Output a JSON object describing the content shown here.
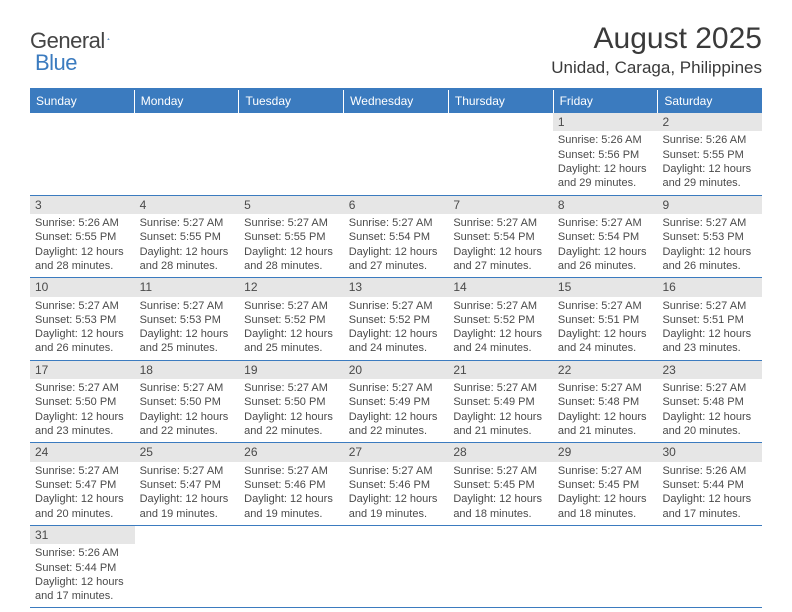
{
  "logo": {
    "word1": "General",
    "word2": "Blue"
  },
  "title": "August 2025",
  "location": "Unidad, Caraga, Philippines",
  "theme": {
    "accent": "#3b7bbf",
    "header_text": "#ffffff",
    "daynum_bg": "#e6e6e6",
    "text": "#4a4a4a"
  },
  "dayHeaders": [
    "Sunday",
    "Monday",
    "Tuesday",
    "Wednesday",
    "Thursday",
    "Friday",
    "Saturday"
  ],
  "weeks": [
    [
      null,
      null,
      null,
      null,
      null,
      {
        "n": "1",
        "sunrise": "5:26 AM",
        "sunset": "5:56 PM",
        "daylight": "12 hours and 29 minutes."
      },
      {
        "n": "2",
        "sunrise": "5:26 AM",
        "sunset": "5:55 PM",
        "daylight": "12 hours and 29 minutes."
      }
    ],
    [
      {
        "n": "3",
        "sunrise": "5:26 AM",
        "sunset": "5:55 PM",
        "daylight": "12 hours and 28 minutes."
      },
      {
        "n": "4",
        "sunrise": "5:27 AM",
        "sunset": "5:55 PM",
        "daylight": "12 hours and 28 minutes."
      },
      {
        "n": "5",
        "sunrise": "5:27 AM",
        "sunset": "5:55 PM",
        "daylight": "12 hours and 28 minutes."
      },
      {
        "n": "6",
        "sunrise": "5:27 AM",
        "sunset": "5:54 PM",
        "daylight": "12 hours and 27 minutes."
      },
      {
        "n": "7",
        "sunrise": "5:27 AM",
        "sunset": "5:54 PM",
        "daylight": "12 hours and 27 minutes."
      },
      {
        "n": "8",
        "sunrise": "5:27 AM",
        "sunset": "5:54 PM",
        "daylight": "12 hours and 26 minutes."
      },
      {
        "n": "9",
        "sunrise": "5:27 AM",
        "sunset": "5:53 PM",
        "daylight": "12 hours and 26 minutes."
      }
    ],
    [
      {
        "n": "10",
        "sunrise": "5:27 AM",
        "sunset": "5:53 PM",
        "daylight": "12 hours and 26 minutes."
      },
      {
        "n": "11",
        "sunrise": "5:27 AM",
        "sunset": "5:53 PM",
        "daylight": "12 hours and 25 minutes."
      },
      {
        "n": "12",
        "sunrise": "5:27 AM",
        "sunset": "5:52 PM",
        "daylight": "12 hours and 25 minutes."
      },
      {
        "n": "13",
        "sunrise": "5:27 AM",
        "sunset": "5:52 PM",
        "daylight": "12 hours and 24 minutes."
      },
      {
        "n": "14",
        "sunrise": "5:27 AM",
        "sunset": "5:52 PM",
        "daylight": "12 hours and 24 minutes."
      },
      {
        "n": "15",
        "sunrise": "5:27 AM",
        "sunset": "5:51 PM",
        "daylight": "12 hours and 24 minutes."
      },
      {
        "n": "16",
        "sunrise": "5:27 AM",
        "sunset": "5:51 PM",
        "daylight": "12 hours and 23 minutes."
      }
    ],
    [
      {
        "n": "17",
        "sunrise": "5:27 AM",
        "sunset": "5:50 PM",
        "daylight": "12 hours and 23 minutes."
      },
      {
        "n": "18",
        "sunrise": "5:27 AM",
        "sunset": "5:50 PM",
        "daylight": "12 hours and 22 minutes."
      },
      {
        "n": "19",
        "sunrise": "5:27 AM",
        "sunset": "5:50 PM",
        "daylight": "12 hours and 22 minutes."
      },
      {
        "n": "20",
        "sunrise": "5:27 AM",
        "sunset": "5:49 PM",
        "daylight": "12 hours and 22 minutes."
      },
      {
        "n": "21",
        "sunrise": "5:27 AM",
        "sunset": "5:49 PM",
        "daylight": "12 hours and 21 minutes."
      },
      {
        "n": "22",
        "sunrise": "5:27 AM",
        "sunset": "5:48 PM",
        "daylight": "12 hours and 21 minutes."
      },
      {
        "n": "23",
        "sunrise": "5:27 AM",
        "sunset": "5:48 PM",
        "daylight": "12 hours and 20 minutes."
      }
    ],
    [
      {
        "n": "24",
        "sunrise": "5:27 AM",
        "sunset": "5:47 PM",
        "daylight": "12 hours and 20 minutes."
      },
      {
        "n": "25",
        "sunrise": "5:27 AM",
        "sunset": "5:47 PM",
        "daylight": "12 hours and 19 minutes."
      },
      {
        "n": "26",
        "sunrise": "5:27 AM",
        "sunset": "5:46 PM",
        "daylight": "12 hours and 19 minutes."
      },
      {
        "n": "27",
        "sunrise": "5:27 AM",
        "sunset": "5:46 PM",
        "daylight": "12 hours and 19 minutes."
      },
      {
        "n": "28",
        "sunrise": "5:27 AM",
        "sunset": "5:45 PM",
        "daylight": "12 hours and 18 minutes."
      },
      {
        "n": "29",
        "sunrise": "5:27 AM",
        "sunset": "5:45 PM",
        "daylight": "12 hours and 18 minutes."
      },
      {
        "n": "30",
        "sunrise": "5:26 AM",
        "sunset": "5:44 PM",
        "daylight": "12 hours and 17 minutes."
      }
    ],
    [
      {
        "n": "31",
        "sunrise": "5:26 AM",
        "sunset": "5:44 PM",
        "daylight": "12 hours and 17 minutes."
      },
      null,
      null,
      null,
      null,
      null,
      null
    ]
  ],
  "labels": {
    "sunrise": "Sunrise:",
    "sunset": "Sunset:",
    "daylight": "Daylight:"
  }
}
